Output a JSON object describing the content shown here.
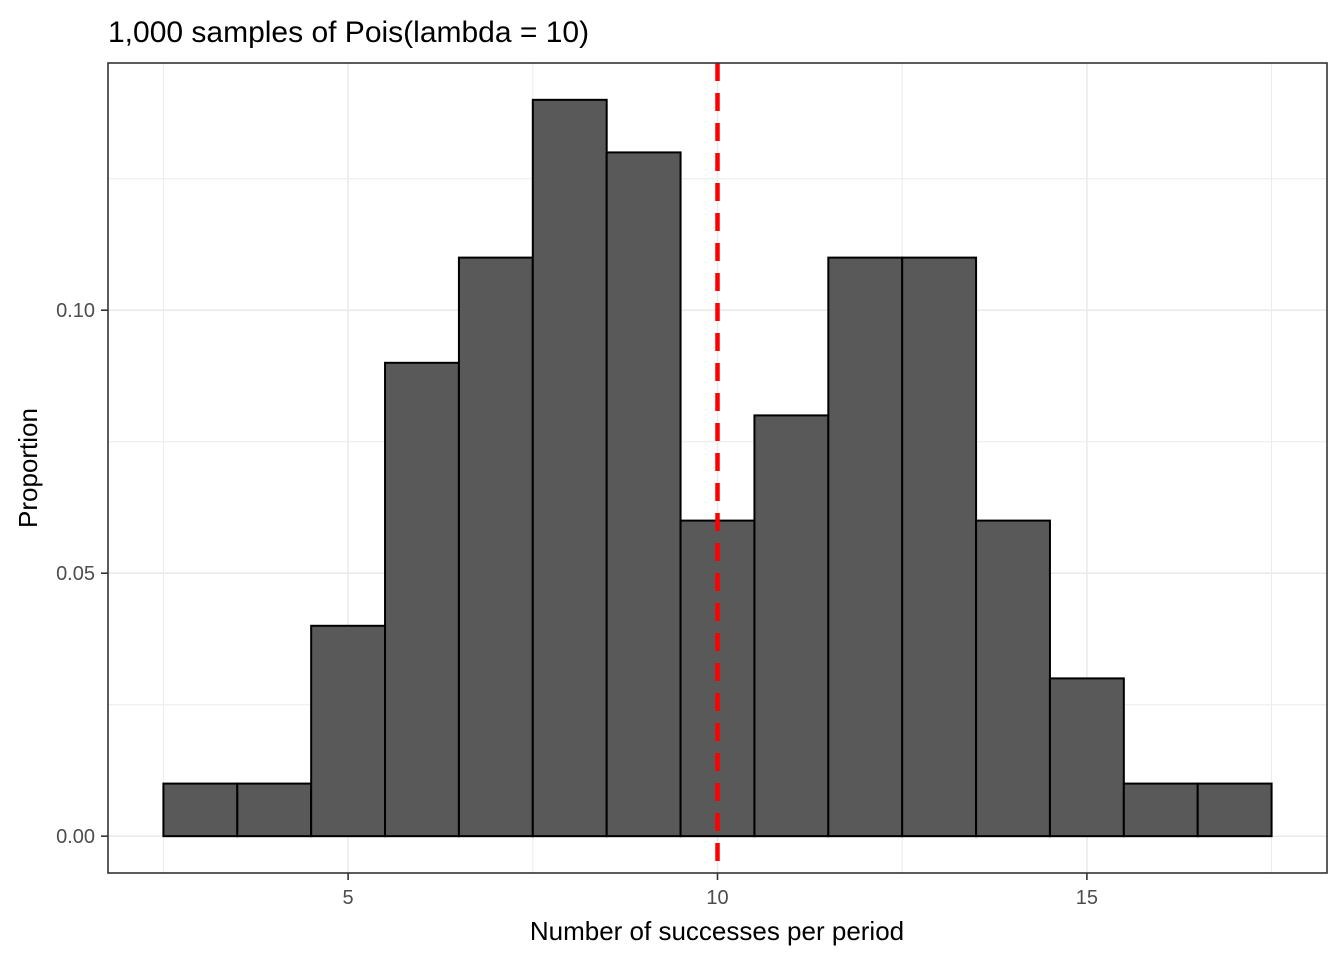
{
  "chart_data": {
    "type": "bar",
    "title": "1,000 samples of Pois(lambda = 10)",
    "xlabel": "Number of successes per period",
    "ylabel": "Proportion",
    "x": [
      3,
      4,
      5,
      6,
      7,
      8,
      9,
      10,
      11,
      12,
      13,
      14,
      15,
      16,
      17
    ],
    "values": [
      0.01,
      0.01,
      0.04,
      0.09,
      0.11,
      0.14,
      0.13,
      0.06,
      0.08,
      0.11,
      0.11,
      0.06,
      0.03,
      0.01,
      0.01
    ],
    "bin_width": 1,
    "xlim": [
      2.5,
      17.5
    ],
    "ylim": [
      0,
      0.14
    ],
    "x_ticks": [
      5,
      10,
      15
    ],
    "x_tick_labels": [
      "5",
      "10",
      "15"
    ],
    "y_ticks": [
      0.0,
      0.05,
      0.1
    ],
    "y_tick_labels": [
      "0.00",
      "0.05",
      "0.10"
    ],
    "reference_line": {
      "x": 10,
      "style": "dashed",
      "color": "#ff0000"
    },
    "grid": true,
    "legend": "none",
    "colors": {
      "bar_fill": "#595959",
      "bar_outline": "#000000",
      "grid": "#ebebeb",
      "panel_border": "#333333"
    }
  }
}
